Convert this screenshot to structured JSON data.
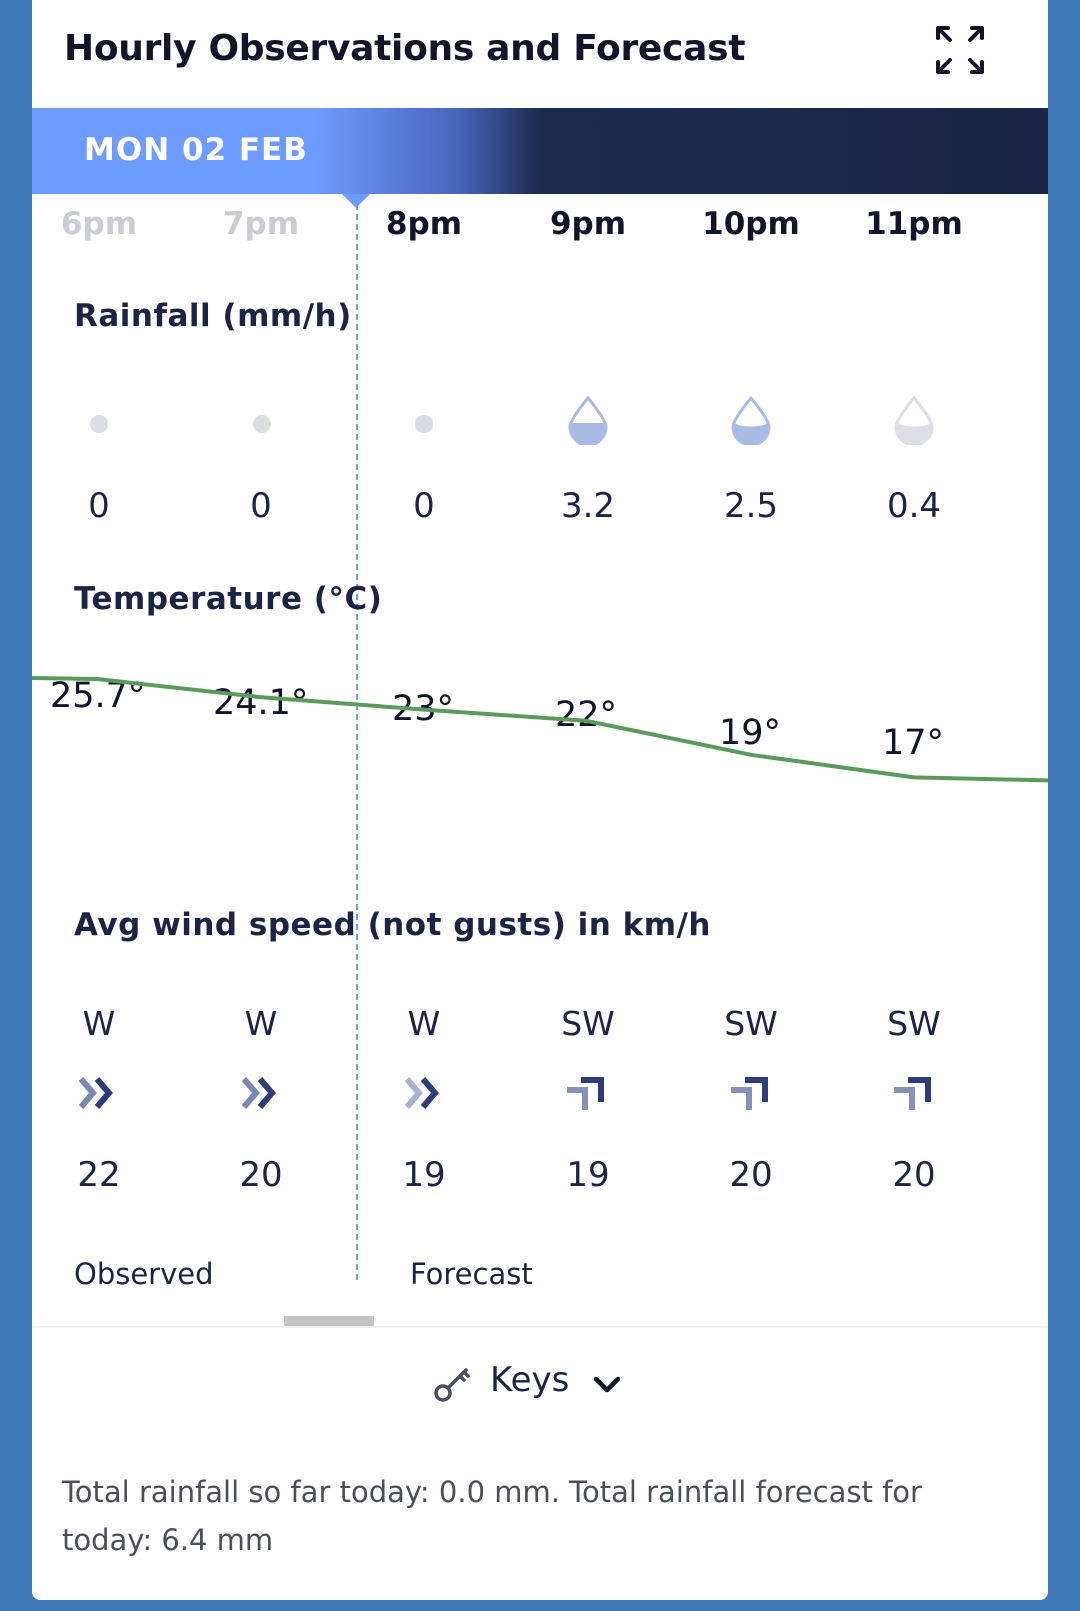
{
  "header": {
    "title": "Hourly Observations and Forecast",
    "expand_icon": "expand-icon"
  },
  "date_bar": {
    "label": "MON 02 FEB"
  },
  "hours": [
    {
      "label": "6pm",
      "observed": true
    },
    {
      "label": "7pm",
      "observed": true
    },
    {
      "label": "8pm",
      "observed": false
    },
    {
      "label": "9pm",
      "observed": false
    },
    {
      "label": "10pm",
      "observed": false
    },
    {
      "label": "11pm",
      "observed": false
    }
  ],
  "rainfall": {
    "label": "Rainfall (mm/h)",
    "values": [
      "0",
      "0",
      "0",
      "3.2",
      "2.5",
      "0.4"
    ],
    "icons": [
      "dot-icon",
      "dot-icon",
      "dot-icon",
      "raindrop-icon",
      "raindrop-icon",
      "raindrop-light-icon"
    ]
  },
  "temperature": {
    "label": "Temperature (°C)",
    "values": [
      25.7,
      24.1,
      23,
      22,
      19,
      17
    ],
    "display": [
      "25.7°",
      "24.1°",
      "23°",
      "22°",
      "19°",
      "17°"
    ],
    "line_color": "#5a9a5c"
  },
  "wind": {
    "label": "Avg wind speed (not gusts) in km/h",
    "directions": [
      "W",
      "W",
      "W",
      "SW",
      "SW",
      "SW"
    ],
    "speeds": [
      "22",
      "20",
      "19",
      "19",
      "20",
      "20"
    ],
    "icons": [
      "double-chevron-right-icon",
      "double-chevron-right-icon",
      "double-chevron-right-icon",
      "wind-sw-icon",
      "wind-sw-icon",
      "wind-sw-icon"
    ]
  },
  "legend": {
    "observed": "Observed",
    "forecast": "Forecast"
  },
  "keys": {
    "label": "Keys",
    "icon": "key-icon",
    "chevron": "chevron-down-icon"
  },
  "footer": {
    "summary": "Total rainfall so far today: 0.0 mm. Total rainfall forecast for today: 6.4 mm"
  },
  "colors": {
    "accent": "#6e9bff",
    "navy": "#1a2547",
    "background": "#3f78b6"
  }
}
